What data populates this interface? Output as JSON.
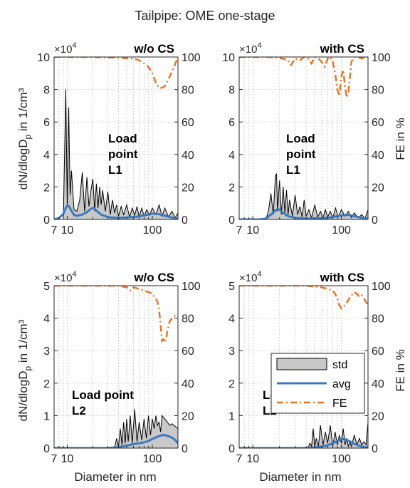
{
  "figure": {
    "title": "Tailpipe: OME one-stage",
    "ylabel_left": "dN/dlogD",
    "ylabel_left_sub": "p",
    "ylabel_left_unit": " in 1/cm³",
    "ylabel_right": "FE in %",
    "xlabel": "Diameter in nm",
    "exponent_base": "×10",
    "exponent_power": "4"
  },
  "colors": {
    "std_fill": "#c8c8c8",
    "std_edge": "#000000",
    "avg": "#3a78c0",
    "fe": "#e8742a",
    "grid": "#d2d2d2",
    "axis": "#262626"
  },
  "legend": {
    "items": [
      {
        "label": "std",
        "kind": "patch"
      },
      {
        "label": "avg",
        "kind": "line"
      },
      {
        "label": "FE",
        "kind": "dashdot"
      }
    ]
  },
  "chart_data": [
    {
      "type": "line",
      "title": "w/o CS",
      "annotation": [
        "Load",
        "point",
        "L1"
      ],
      "xscale": "log",
      "xlim": [
        7,
        200
      ],
      "xticks": [
        7,
        10,
        100
      ],
      "xtick_labels": [
        "7",
        "10",
        "100"
      ],
      "ylim_left": [
        0,
        100000
      ],
      "yticks_left": [
        "0",
        "2",
        "4",
        "6",
        "8",
        "10"
      ],
      "ylim_right": [
        0,
        100
      ],
      "yticks_right": [
        "0",
        "20",
        "40",
        "60",
        "80",
        "100"
      ],
      "grid": true,
      "series": [
        {
          "name": "std",
          "axis": "left",
          "x": [
            7,
            9,
            9.6,
            10,
            10.4,
            10.8,
            11.2,
            12,
            13,
            14,
            15,
            16,
            17,
            18,
            19,
            20,
            21,
            22,
            23,
            24,
            25,
            26,
            28,
            30,
            32,
            34,
            36,
            38,
            40,
            43,
            46,
            50,
            54,
            58,
            62,
            66,
            70,
            75,
            80,
            86,
            92,
            100,
            110,
            120,
            130,
            140,
            155,
            170,
            185,
            200
          ],
          "values": [
            0,
            0,
            80000,
            8000,
            69000,
            15000,
            30000,
            6000,
            5000,
            12000,
            29000,
            5000,
            26000,
            8000,
            18000,
            25000,
            5000,
            22000,
            7000,
            20000,
            9000,
            18000,
            5000,
            17000,
            3000,
            12000,
            4000,
            9000,
            2000,
            8000,
            3000,
            9000,
            1500,
            7000,
            2500,
            8000,
            1500,
            7000,
            2000,
            6000,
            2500,
            7000,
            3000,
            9000,
            2000,
            7000,
            1500,
            5000,
            1000,
            4000
          ]
        },
        {
          "name": "avg",
          "axis": "left",
          "x": [
            7,
            8,
            9,
            9.6,
            10,
            10.5,
            11,
            12,
            13,
            15,
            17,
            19,
            20,
            21,
            23,
            25,
            28,
            32,
            40,
            50,
            60,
            70,
            80,
            90,
            100,
            110,
            120,
            130,
            140,
            160,
            180,
            200
          ],
          "values": [
            0,
            800,
            3500,
            7000,
            8500,
            8000,
            6000,
            2800,
            2200,
            3000,
            4500,
            6500,
            7000,
            6500,
            4500,
            3000,
            2000,
            1200,
            1000,
            1200,
            1500,
            1800,
            2500,
            3000,
            3500,
            3500,
            3200,
            2800,
            2200,
            1500,
            800,
            400
          ]
        },
        {
          "name": "FE",
          "axis": "right",
          "x": [
            7,
            20,
            40,
            60,
            70,
            80,
            90,
            100,
            110,
            120,
            130,
            140,
            150,
            160,
            170,
            180,
            190,
            200
          ],
          "values": [
            100,
            100,
            99.5,
            99,
            98,
            96,
            94,
            90,
            84,
            81,
            81,
            82,
            85,
            88,
            91,
            94,
            97,
            99
          ]
        }
      ]
    },
    {
      "type": "line",
      "title": "with CS",
      "annotation": [
        "Load",
        "point",
        "L1"
      ],
      "xscale": "log",
      "xlim": [
        7,
        200
      ],
      "xticks": [
        7,
        10,
        100
      ],
      "xtick_labels": [
        "7",
        "10",
        "100"
      ],
      "ylim_left": [
        0,
        100000
      ],
      "yticks_left": [
        "0",
        "2",
        "4",
        "6",
        "8",
        "10"
      ],
      "ylim_right": [
        0,
        100
      ],
      "yticks_right": [
        "0",
        "20",
        "40",
        "60",
        "80",
        "100"
      ],
      "grid": true,
      "series": [
        {
          "name": "std",
          "axis": "left",
          "x": [
            7,
            14,
            15,
            16,
            17,
            18,
            18.5,
            19,
            20,
            21,
            22,
            23,
            24,
            25,
            26,
            28,
            30,
            32,
            34,
            36,
            38,
            40,
            43,
            46,
            50,
            54,
            58,
            62,
            66,
            70,
            75,
            80,
            86,
            92,
            100,
            110,
            120,
            130,
            140,
            155,
            170,
            185,
            200
          ],
          "values": [
            0,
            0,
            5000,
            16000,
            3000,
            27000,
            28000,
            5000,
            24000,
            3000,
            20000,
            4000,
            18000,
            3000,
            12000,
            2000,
            15000,
            3000,
            8000,
            1500,
            12000,
            2000,
            6000,
            1000,
            9000,
            1500,
            5000,
            1000,
            6000,
            1500,
            5000,
            1000,
            7000,
            1500,
            6000,
            2000,
            5000,
            1000,
            4000,
            1000,
            3000,
            500,
            6000
          ]
        },
        {
          "name": "avg",
          "axis": "left",
          "x": [
            7,
            12,
            14,
            16,
            18,
            19,
            20,
            22,
            25,
            30,
            40,
            50,
            60,
            70,
            80,
            90,
            100,
            110,
            120,
            130,
            140,
            160,
            180,
            200
          ],
          "values": [
            0,
            0,
            500,
            3000,
            5500,
            6500,
            6000,
            4000,
            2000,
            1000,
            500,
            600,
            800,
            1000,
            1500,
            2000,
            2500,
            2700,
            2700,
            2400,
            2000,
            1300,
            700,
            400
          ]
        },
        {
          "name": "FE",
          "axis": "right",
          "x": [
            7,
            15,
            20,
            25,
            27,
            30,
            34,
            38,
            42,
            46,
            50,
            55,
            60,
            65,
            70,
            75,
            80,
            85,
            90,
            95,
            100,
            105,
            110,
            115,
            120,
            130,
            140,
            155,
            170,
            185,
            200
          ],
          "values": [
            100,
            100,
            99.5,
            98,
            95,
            99,
            98,
            100,
            99,
            96,
            100,
            99,
            97,
            94,
            99,
            100,
            97,
            90,
            80,
            76,
            88,
            92,
            82,
            75,
            78,
            97,
            100,
            100,
            99,
            100,
            100
          ]
        }
      ]
    },
    {
      "type": "line",
      "title": "w/o CS",
      "annotation": [
        "Load point",
        "L2"
      ],
      "xscale": "log",
      "xlim": [
        7,
        200
      ],
      "xticks": [
        7,
        10,
        100
      ],
      "xtick_labels": [
        "7",
        "10",
        "100"
      ],
      "ylim_left": [
        0,
        50000
      ],
      "yticks_left": [
        "0",
        "1",
        "2",
        "3",
        "4",
        "5"
      ],
      "ylim_right": [
        0,
        100
      ],
      "yticks_right": [
        "0",
        "20",
        "40",
        "60",
        "80",
        "100"
      ],
      "grid": true,
      "series": [
        {
          "name": "std",
          "axis": "left",
          "x": [
            7,
            36,
            38,
            40,
            42,
            44,
            46,
            48,
            50,
            52,
            55,
            58,
            62,
            66,
            70,
            75,
            80,
            85,
            90,
            95,
            100,
            105,
            110,
            115,
            120,
            125,
            130,
            140,
            150,
            160,
            170,
            180,
            190,
            200
          ],
          "values": [
            0,
            0,
            3000,
            500,
            6000,
            1000,
            8000,
            1500,
            9000,
            2000,
            10000,
            1500,
            12000,
            2000,
            8000,
            2500,
            9000,
            3000,
            10000,
            4000,
            9000,
            6000,
            10000,
            7000,
            8000,
            5000,
            10000,
            9000,
            8000,
            7000,
            7500,
            7000,
            6500,
            6000
          ]
        },
        {
          "name": "avg",
          "axis": "left",
          "x": [
            7,
            30,
            40,
            50,
            60,
            70,
            80,
            90,
            100,
            110,
            120,
            130,
            140,
            150,
            160,
            170,
            180,
            190,
            200
          ],
          "values": [
            0,
            0,
            300,
            800,
            1200,
            1500,
            1800,
            2200,
            2800,
            3300,
            3700,
            4000,
            4000,
            3800,
            3500,
            3200,
            2800,
            2200,
            1500
          ]
        },
        {
          "name": "FE",
          "axis": "right",
          "x": [
            7,
            20,
            40,
            50,
            55,
            60,
            70,
            80,
            90,
            100,
            110,
            115,
            120,
            125,
            130,
            135,
            140,
            145,
            150,
            160,
            170,
            180,
            190,
            200
          ],
          "values": [
            100,
            100,
            100,
            99,
            97,
            99,
            98,
            97,
            96,
            95,
            92,
            90,
            85,
            76,
            66,
            67,
            65,
            67,
            72,
            78,
            80,
            81,
            82,
            82
          ]
        }
      ]
    },
    {
      "type": "line",
      "title": "with CS",
      "annotation": [
        "Load point",
        "L2"
      ],
      "xscale": "log",
      "xlim": [
        7,
        200
      ],
      "xticks": [
        7,
        10,
        100
      ],
      "xtick_labels": [
        "7",
        "10",
        "100"
      ],
      "ylim_left": [
        0,
        50000
      ],
      "yticks_left": [
        "0",
        "1",
        "2",
        "3",
        "4",
        "5"
      ],
      "ylim_right": [
        0,
        100
      ],
      "yticks_right": [
        "0",
        "20",
        "40",
        "60",
        "80",
        "100"
      ],
      "grid": true,
      "series": [
        {
          "name": "std",
          "axis": "left",
          "x": [
            7,
            42,
            44,
            46,
            48,
            50,
            52,
            55,
            58,
            62,
            66,
            70,
            75,
            80,
            85,
            90,
            95,
            100,
            105,
            110,
            115,
            120,
            125,
            130,
            140,
            150,
            160,
            170,
            180,
            190,
            200
          ],
          "values": [
            0,
            0,
            1500,
            500,
            6000,
            500,
            3000,
            500,
            7000,
            1000,
            5000,
            1500,
            7000,
            500,
            5000,
            1000,
            4000,
            1500,
            6000,
            1000,
            3000,
            500,
            2000,
            500,
            4000,
            1000,
            3000,
            1000,
            2000,
            1000,
            8000
          ]
        },
        {
          "name": "avg",
          "axis": "left",
          "x": [
            7,
            40,
            50,
            60,
            70,
            80,
            90,
            100,
            110,
            120,
            130,
            140,
            160,
            180,
            200
          ],
          "values": [
            0,
            0,
            200,
            500,
            900,
            1500,
            2200,
            2800,
            2700,
            2300,
            1800,
            1300,
            700,
            300,
            200
          ]
        },
        {
          "name": "FE",
          "axis": "right",
          "x": [
            7,
            20,
            40,
            60,
            70,
            80,
            85,
            90,
            95,
            100,
            110,
            120,
            125,
            130,
            140,
            150,
            160,
            170,
            180,
            190,
            200
          ],
          "values": [
            100,
            100,
            100,
            99,
            98,
            97,
            95,
            92,
            88,
            86,
            88,
            91,
            93,
            94,
            96,
            95,
            93,
            94,
            92,
            90,
            88
          ]
        }
      ]
    }
  ]
}
